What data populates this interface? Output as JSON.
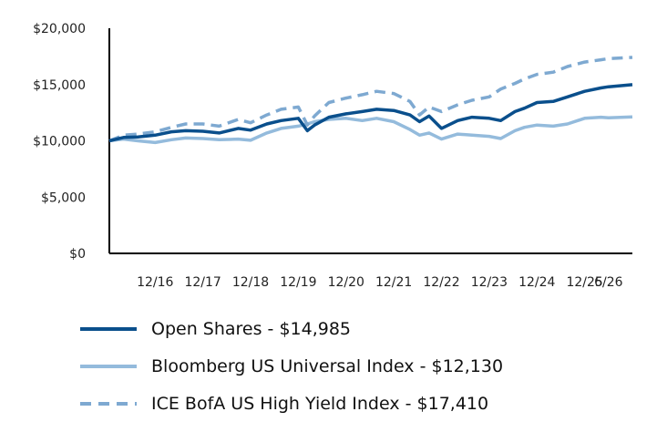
{
  "chart_data": {
    "type": "line",
    "ylim": [
      0,
      20000
    ],
    "yticks": [
      "$0",
      "$5,000",
      "$10,000",
      "$15,000",
      "$20,000"
    ],
    "ytick_values": [
      0,
      5000,
      10000,
      15000,
      20000
    ],
    "xticks": [
      "12/16",
      "12/17",
      "12/18",
      "12/19",
      "12/20",
      "12/21",
      "12/22",
      "12/23",
      "12/24",
      "12/25",
      "6/26"
    ],
    "xtick_values": [
      2016.96,
      2017.96,
      2018.96,
      2019.96,
      2020.96,
      2021.96,
      2022.96,
      2023.96,
      2024.96,
      2025.96,
      2026.46
    ],
    "xlim": [
      2016.0,
      2026.96
    ],
    "grid": false,
    "legend_position": "bottom-left",
    "series": [
      {
        "name": "Open Shares - $14,985",
        "color": "#0a4f8c",
        "style": "solid",
        "x": [
          2016.0,
          2016.3,
          2016.6,
          2016.96,
          2017.3,
          2017.6,
          2017.96,
          2018.3,
          2018.7,
          2018.96,
          2019.3,
          2019.6,
          2019.96,
          2020.15,
          2020.3,
          2020.6,
          2020.96,
          2021.3,
          2021.6,
          2021.96,
          2022.3,
          2022.5,
          2022.7,
          2022.96,
          2023.3,
          2023.6,
          2023.96,
          2024.2,
          2024.5,
          2024.7,
          2024.96,
          2025.3,
          2025.6,
          2025.96,
          2026.3,
          2026.46,
          2026.96
        ],
        "values": [
          10000,
          10300,
          10350,
          10500,
          10800,
          10900,
          10850,
          10700,
          11100,
          10950,
          11500,
          11800,
          12000,
          10900,
          11400,
          12100,
          12400,
          12600,
          12800,
          12700,
          12300,
          11700,
          12200,
          11100,
          11800,
          12100,
          12000,
          11800,
          12600,
          12900,
          13400,
          13500,
          13900,
          14400,
          14700,
          14800,
          14985
        ]
      },
      {
        "name": "Bloomberg US Universal Index - $12,130",
        "color": "#94bbdc",
        "style": "solid",
        "x": [
          2016.0,
          2016.3,
          2016.6,
          2016.96,
          2017.3,
          2017.6,
          2017.96,
          2018.3,
          2018.7,
          2018.96,
          2019.3,
          2019.6,
          2019.96,
          2020.15,
          2020.3,
          2020.6,
          2020.96,
          2021.3,
          2021.6,
          2021.96,
          2022.3,
          2022.5,
          2022.7,
          2022.96,
          2023.3,
          2023.6,
          2023.96,
          2024.2,
          2024.5,
          2024.7,
          2024.96,
          2025.3,
          2025.6,
          2025.96,
          2026.3,
          2026.46,
          2026.96
        ],
        "values": [
          10000,
          10150,
          10000,
          9850,
          10100,
          10250,
          10200,
          10100,
          10150,
          10050,
          10700,
          11100,
          11300,
          11500,
          11700,
          11900,
          12000,
          11800,
          12000,
          11700,
          11000,
          10500,
          10700,
          10150,
          10600,
          10500,
          10400,
          10200,
          10900,
          11200,
          11400,
          11300,
          11500,
          12000,
          12100,
          12050,
          12130
        ]
      },
      {
        "name": "ICE BofA US High Yield Index - $17,410",
        "color": "#7ea9d1",
        "style": "dashed",
        "x": [
          2016.0,
          2016.3,
          2016.6,
          2016.96,
          2017.3,
          2017.6,
          2017.96,
          2018.3,
          2018.7,
          2018.96,
          2019.3,
          2019.6,
          2019.96,
          2020.15,
          2020.3,
          2020.6,
          2020.96,
          2021.3,
          2021.6,
          2021.96,
          2022.3,
          2022.5,
          2022.7,
          2022.96,
          2023.3,
          2023.6,
          2023.96,
          2024.2,
          2024.5,
          2024.7,
          2024.96,
          2025.3,
          2025.6,
          2025.96,
          2026.3,
          2026.46,
          2026.96
        ],
        "values": [
          10000,
          10500,
          10600,
          10800,
          11200,
          11500,
          11500,
          11300,
          11900,
          11600,
          12300,
          12800,
          13000,
          11400,
          12200,
          13400,
          13800,
          14100,
          14400,
          14200,
          13500,
          12300,
          13000,
          12600,
          13200,
          13600,
          13900,
          14600,
          15100,
          15500,
          15900,
          16100,
          16600,
          17000,
          17200,
          17300,
          17410
        ]
      }
    ]
  }
}
